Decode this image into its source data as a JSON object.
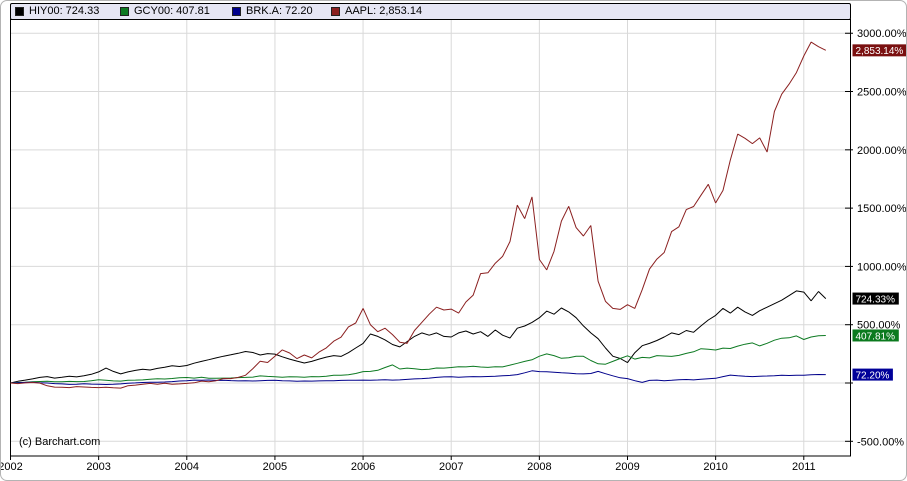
{
  "widget": {
    "copyright": "(c) Barchart.com",
    "background": "#ffffff",
    "frame_border_color": "#b3b3b3"
  },
  "legend": {
    "background": "#e6e6f4",
    "border_color": "#000000",
    "items": [
      {
        "symbol": "HIY00",
        "label": "HIY00: 724.33",
        "color": "#000000"
      },
      {
        "symbol": "GCY00",
        "label": "GCY00: 407.81",
        "color": "#0d7a22"
      },
      {
        "symbol": "BRK.A",
        "label": "BRK.A: 72.20",
        "color": "#00008b"
      },
      {
        "symbol": "AAPL",
        "label": "AAPL: 2,853.14",
        "color": "#8b2020"
      }
    ]
  },
  "chart_data": {
    "type": "line",
    "title": "",
    "xlabel": "",
    "ylabel": "",
    "grid": true,
    "legend_position": "top",
    "x_axis": {
      "tick_labels": [
        "2002",
        "2003",
        "2004",
        "2005",
        "2006",
        "2007",
        "2008",
        "2009",
        "2010",
        "2011"
      ],
      "tick_values": [
        2002,
        2003,
        2004,
        2005,
        2006,
        2007,
        2008,
        2009,
        2010,
        2011
      ],
      "range": [
        2002,
        2011.53
      ]
    },
    "y_axis": {
      "unit": "%",
      "ticks": [
        {
          "value": 3000,
          "label": "3000.00%"
        },
        {
          "value": 2500,
          "label": "2500.00%"
        },
        {
          "value": 2000,
          "label": "2000.00%"
        },
        {
          "value": 1500,
          "label": "1500.00%"
        },
        {
          "value": 1000,
          "label": "1000.00%"
        },
        {
          "value": 500,
          "label": "500.00%"
        },
        {
          "value": 0,
          "label": ""
        },
        {
          "value": -500,
          "label": "-500.00%"
        }
      ],
      "plot_value_range": [
        -626,
        3122
      ]
    },
    "x_start": 2002.0,
    "x_step_years": 0.0833333,
    "series": [
      {
        "name": "HIY00",
        "color": "#000000",
        "badge_color": "#000000",
        "final_value": 724.33,
        "final_label": "724.33%",
        "values": [
          0,
          15,
          25,
          35,
          48,
          55,
          42,
          50,
          58,
          52,
          62,
          75,
          95,
          128,
          100,
          78,
          95,
          108,
          118,
          112,
          125,
          135,
          148,
          142,
          150,
          170,
          185,
          200,
          215,
          230,
          242,
          255,
          270,
          262,
          240,
          252,
          248,
          225,
          205,
          188,
          172,
          185,
          205,
          222,
          235,
          228,
          260,
          300,
          340,
          420,
          400,
          370,
          330,
          310,
          355,
          400,
          430,
          410,
          430,
          400,
          395,
          430,
          446,
          420,
          440,
          400,
          455,
          410,
          386,
          470,
          489,
          520,
          560,
          617,
          590,
          643,
          610,
          560,
          490,
          430,
          380,
          300,
          230,
          210,
          175,
          260,
          320,
          340,
          365,
          395,
          430,
          415,
          450,
          435,
          490,
          540,
          580,
          640,
          600,
          650,
          610,
          580,
          620,
          650,
          680,
          710,
          750,
          790,
          780,
          705,
          785,
          724.33
        ]
      },
      {
        "name": "GCY00",
        "color": "#0d7a22",
        "badge_color": "#0b7a1e",
        "final_value": 407.81,
        "final_label": "407.81%",
        "values": [
          0,
          4,
          7,
          10,
          13,
          15,
          10,
          11,
          14,
          12,
          13,
          19,
          28,
          24,
          18,
          16,
          24,
          25,
          27,
          33,
          36,
          34,
          39,
          45,
          47,
          42,
          49,
          41,
          40,
          42,
          43,
          46,
          48,
          51,
          61,
          57,
          53,
          50,
          54,
          52,
          50,
          55,
          53,
          58,
          66,
          67,
          71,
          82,
          98,
          100,
          109,
          133,
          155,
          120,
          128,
          123,
          115,
          118,
          129,
          128,
          133,
          140,
          138,
          143,
          137,
          134,
          139,
          138,
          154,
          169,
          185,
          199,
          230,
          250,
          235,
          212,
          217,
          230,
          229,
          193,
          165,
          161,
          185,
          210,
          233,
          205,
          220,
          215,
          235,
          232,
          228,
          237,
          254,
          268,
          294,
          290,
          283,
          299,
          296,
          317,
          333,
          344,
          318,
          341,
          367,
          384,
          388,
          404,
          373,
          395,
          405,
          407.81
        ]
      },
      {
        "name": "BRK.A",
        "color": "#00008b",
        "badge_color": "#000099",
        "final_value": 72.2,
        "final_label": "72.20%",
        "values": [
          0,
          2,
          5,
          7,
          3,
          0,
          -5,
          -8,
          -12,
          -10,
          -6,
          -9,
          -10,
          -13,
          -11,
          -8,
          -2,
          1,
          4,
          7,
          6,
          9,
          12,
          17,
          19,
          25,
          23,
          26,
          22,
          24,
          21,
          18,
          19,
          17,
          20,
          22,
          24,
          20,
          18,
          15,
          17,
          16,
          18,
          20,
          19,
          22,
          24,
          23,
          25,
          24,
          26,
          28,
          25,
          27,
          31,
          35,
          38,
          42,
          48,
          52,
          54,
          50,
          52,
          55,
          53,
          56,
          58,
          62,
          65,
          72,
          88,
          105,
          98,
          96,
          92,
          88,
          85,
          80,
          78,
          82,
          100,
          80,
          62,
          45,
          38,
          20,
          5,
          22,
          25,
          20,
          23,
          28,
          30,
          27,
          32,
          37,
          40,
          55,
          68,
          63,
          58,
          55,
          58,
          60,
          63,
          66,
          64,
          67,
          66,
          71,
          73,
          72.2
        ]
      },
      {
        "name": "AAPL",
        "color": "#8b2020",
        "badge_color": "#7a1010",
        "final_value": 2853.14,
        "final_label": "2,853.14%",
        "values": [
          0,
          -5,
          1,
          4,
          -1,
          -24,
          -35,
          -37,
          -39,
          -31,
          -34,
          -38,
          -39,
          -36,
          -41,
          -44,
          -23,
          -18,
          -10,
          -3,
          -11,
          -2,
          -11,
          -8,
          -3,
          2,
          16,
          10,
          20,
          39,
          38,
          48,
          66,
          124,
          187,
          176,
          229,
          284,
          257,
          209,
          240,
          215,
          265,
          301,
          359,
          393,
          481,
          515,
          640,
          500,
          440,
          470,
          415,
          350,
          340,
          450,
          520,
          590,
          650,
          626,
          634,
          600,
          695,
          754,
          938,
          945,
          1028,
          1086,
          1214,
          1526,
          1410,
          1596,
          1059,
          970,
          1129,
          1389,
          1516,
          1333,
          1261,
          1351,
          873,
          700,
          640,
          631,
          672,
          640,
          800,
          977,
          1063,
          1119,
          1299,
          1340,
          1487,
          1514,
          1611,
          1704,
          1544,
          1652,
          1912,
          2135,
          2099,
          2053,
          2102,
          1981,
          2329,
          2477,
          2564,
          2662,
          2805,
          2924,
          2884,
          2853.14
        ]
      }
    ]
  },
  "colors": {
    "gridline": "#d9d9d9",
    "plot_border": "#000000",
    "axis_text": "#000000",
    "badge_text": "#ffffff"
  }
}
